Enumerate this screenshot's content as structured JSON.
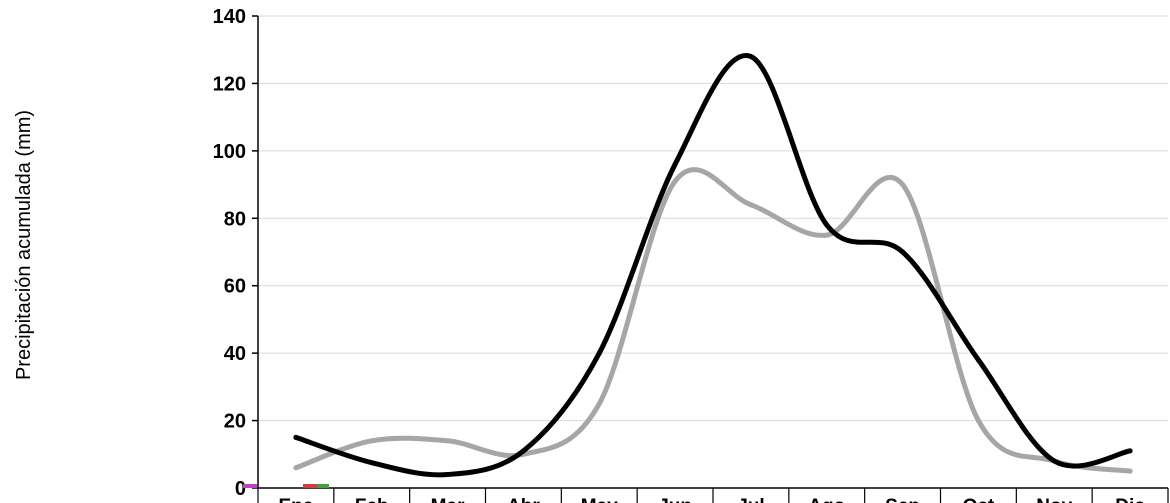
{
  "chart_data": {
    "type": "line",
    "ylabel": "Precipitación acumulada (mm)",
    "xlabel": "",
    "title": "",
    "ylim": [
      0,
      140
    ],
    "yticks": [
      0,
      20,
      40,
      60,
      80,
      100,
      120,
      140
    ],
    "categories": [
      "Ene",
      "Feb",
      "Mar",
      "Abr",
      "May",
      "Jun",
      "Jul",
      "Ago",
      "Sep",
      "Oct",
      "Nov",
      "Dic"
    ],
    "grid": "horizontal",
    "series": [
      {
        "color": "#000000",
        "values": [
          15,
          7.5,
          4,
          11,
          40,
          96,
          128,
          78,
          70,
          38,
          8,
          11
        ]
      },
      {
        "color": "#a6a6a6",
        "values": [
          6,
          14,
          14,
          10,
          25,
          91,
          84,
          75,
          90,
          20,
          8,
          5
        ]
      }
    ],
    "legend_markers": [
      {
        "color": "#c040c0"
      },
      {
        "color": "#d04040"
      },
      {
        "color": "#40a040"
      }
    ]
  }
}
